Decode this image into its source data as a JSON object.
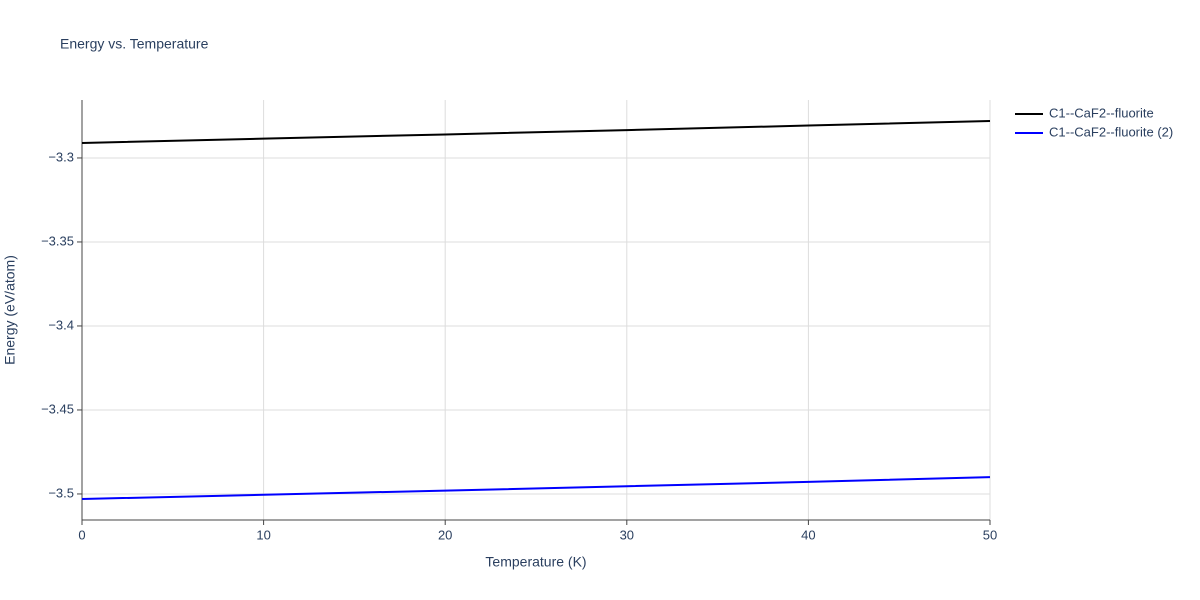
{
  "chart_data": {
    "type": "line",
    "title": "Energy vs. Temperature",
    "x_label": "Temperature (K)",
    "y_label": "Energy (eV/atom)",
    "x": [
      0,
      10,
      20,
      30,
      40,
      50
    ],
    "series": [
      {
        "name": "C1--CaF2--fluorite",
        "color": "#000000",
        "values": [
          -3.2911,
          -3.2885,
          -3.286,
          -3.2834,
          -3.2807,
          -3.278
        ]
      },
      {
        "name": "C1--CaF2--fluorite (2)",
        "color": "#0000ff",
        "values": [
          -3.503,
          -3.5005,
          -3.498,
          -3.4954,
          -3.4928,
          -3.49
        ]
      }
    ],
    "xlim": [
      0,
      50
    ],
    "xticks": [
      0,
      10,
      20,
      30,
      40,
      50
    ],
    "ylim": [
      -3.5155,
      -3.2655
    ],
    "yticks": [
      {
        "value": -3.5,
        "label": "−3.5"
      },
      {
        "value": -3.45,
        "label": "−3.45"
      },
      {
        "value": -3.4,
        "label": "−3.4"
      },
      {
        "value": -3.35,
        "label": "−3.35"
      },
      {
        "value": -3.3,
        "label": "−3.3"
      }
    ],
    "grid": true
  }
}
